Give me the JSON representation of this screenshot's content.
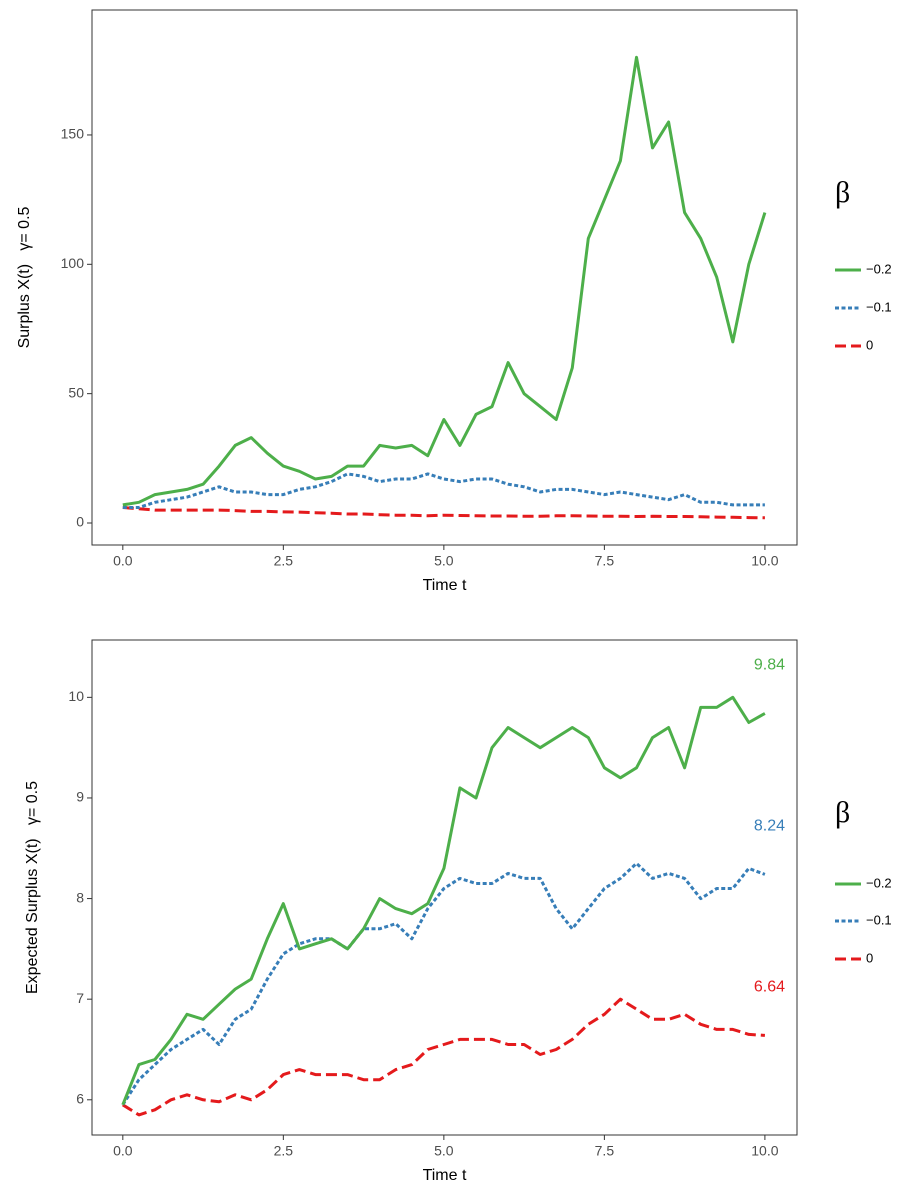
{
  "chart_data": [
    {
      "type": "line",
      "ylabel": "Surplus X(t)   γ= 0.5",
      "xlabel": "Time t",
      "legend_title": "β",
      "legend": "right",
      "grid": false,
      "xlim": [
        -0.48,
        10.5
      ],
      "ylim": [
        -8.5,
        198.3
      ],
      "xticks": [
        {
          "value": 0,
          "label": "0.0"
        },
        2.5,
        {
          "value": 5,
          "label": "5.0"
        },
        7.5,
        {
          "value": 10,
          "label": "10.0"
        }
      ],
      "yticks": [
        0,
        50,
        100,
        150
      ],
      "x": [
        0,
        0.25,
        0.5,
        0.75,
        1,
        1.25,
        1.5,
        1.75,
        2,
        2.25,
        2.5,
        2.75,
        3,
        3.25,
        3.5,
        3.75,
        4,
        4.25,
        4.5,
        4.75,
        5,
        5.25,
        5.5,
        5.75,
        6,
        6.25,
        6.5,
        6.75,
        7,
        7.25,
        7.5,
        7.75,
        8,
        8.25,
        8.5,
        8.75,
        9,
        9.25,
        9.5,
        9.75,
        10
      ],
      "series": [
        {
          "name": "−0.2",
          "color": "#4daf4a",
          "dash": "solid",
          "values": [
            7,
            8,
            11,
            12,
            13,
            15,
            22,
            30,
            33,
            27,
            22,
            20,
            17,
            18,
            22,
            22,
            30,
            29,
            30,
            26,
            40,
            30,
            42,
            45,
            62,
            50,
            45,
            40,
            60,
            110,
            125,
            140,
            180,
            145,
            155,
            120,
            110,
            95,
            70,
            100,
            120
          ]
        },
        {
          "name": "−0.1",
          "color": "#377eb8",
          "dash": "dotted",
          "values": [
            6,
            6,
            8,
            9,
            10,
            12,
            14,
            12,
            12,
            11,
            11,
            13,
            14,
            16,
            19,
            18,
            16,
            17,
            17,
            19,
            17,
            16,
            17,
            17,
            15,
            14,
            12,
            13,
            13,
            12,
            11,
            12,
            11,
            10,
            9,
            11,
            8,
            8,
            7,
            7,
            7
          ]
        },
        {
          "name": "0",
          "color": "#e41a1c",
          "dash": "dashed",
          "values": [
            6,
            5.5,
            5,
            5,
            5,
            5,
            5,
            4.8,
            4.5,
            4.5,
            4.3,
            4.2,
            4,
            3.8,
            3.5,
            3.5,
            3.2,
            3,
            3,
            2.8,
            3,
            2.9,
            2.8,
            2.7,
            2.7,
            2.6,
            2.6,
            2.8,
            2.8,
            2.7,
            2.6,
            2.6,
            2.5,
            2.6,
            2.5,
            2.5,
            2.4,
            2.3,
            2.2,
            2.1,
            2
          ]
        }
      ]
    },
    {
      "type": "line",
      "ylabel": "Expected Surplus X(t)   γ= 0.5",
      "xlabel": "Time t",
      "legend_title": "β",
      "legend": "right",
      "grid": false,
      "xlim": [
        -0.48,
        10.5
      ],
      "ylim": [
        5.65,
        10.57
      ],
      "xticks": [
        {
          "value": 0,
          "label": "0.0"
        },
        2.5,
        {
          "value": 5,
          "label": "5.0"
        },
        7.5,
        {
          "value": 10,
          "label": "10.0"
        }
      ],
      "yticks": [
        6,
        7,
        8,
        9,
        10
      ],
      "x": [
        0,
        0.25,
        0.5,
        0.75,
        1,
        1.25,
        1.5,
        1.75,
        2,
        2.25,
        2.5,
        2.75,
        3,
        3.25,
        3.5,
        3.75,
        4,
        4.25,
        4.5,
        4.75,
        5,
        5.25,
        5.5,
        5.75,
        6,
        6.25,
        6.5,
        6.75,
        7,
        7.25,
        7.5,
        7.75,
        8,
        8.25,
        8.5,
        8.75,
        9,
        9.25,
        9.5,
        9.75,
        10
      ],
      "series": [
        {
          "name": "−0.2",
          "color": "#4daf4a",
          "dash": "solid",
          "values": [
            5.95,
            6.35,
            6.4,
            6.6,
            6.85,
            6.8,
            6.95,
            7.1,
            7.2,
            7.6,
            7.95,
            7.5,
            7.55,
            7.6,
            7.5,
            7.7,
            8.0,
            7.9,
            7.85,
            7.95,
            8.3,
            9.1,
            9.0,
            9.5,
            9.7,
            9.6,
            9.5,
            9.6,
            9.7,
            9.6,
            9.3,
            9.2,
            9.3,
            9.6,
            9.7,
            9.3,
            9.9,
            9.9,
            10.0,
            9.75,
            9.84
          ]
        },
        {
          "name": "−0.1",
          "color": "#377eb8",
          "dash": "dotted",
          "values": [
            5.95,
            6.2,
            6.35,
            6.5,
            6.6,
            6.7,
            6.55,
            6.8,
            6.9,
            7.2,
            7.45,
            7.55,
            7.6,
            7.6,
            7.5,
            7.7,
            7.7,
            7.75,
            7.6,
            7.9,
            8.1,
            8.2,
            8.15,
            8.15,
            8.25,
            8.2,
            8.2,
            7.9,
            7.7,
            7.9,
            8.1,
            8.2,
            8.35,
            8.2,
            8.25,
            8.2,
            8.0,
            8.1,
            8.1,
            8.3,
            8.24
          ]
        },
        {
          "name": "0",
          "color": "#e41a1c",
          "dash": "dashed",
          "values": [
            5.95,
            5.85,
            5.9,
            6.0,
            6.05,
            6.0,
            5.98,
            6.05,
            6.0,
            6.1,
            6.25,
            6.3,
            6.25,
            6.25,
            6.25,
            6.2,
            6.2,
            6.3,
            6.35,
            6.5,
            6.55,
            6.6,
            6.6,
            6.6,
            6.55,
            6.55,
            6.45,
            6.5,
            6.6,
            6.75,
            6.85,
            7.0,
            6.9,
            6.8,
            6.8,
            6.85,
            6.75,
            6.7,
            6.7,
            6.65,
            6.64
          ]
        }
      ],
      "end_labels": true
    }
  ]
}
